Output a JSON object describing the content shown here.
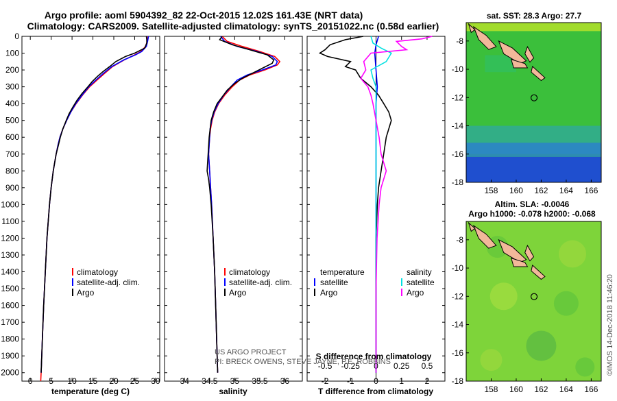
{
  "header": {
    "line1": "Argo profile: aoml 5904392_82 22-Oct-2015 12.02S 161.43E (NRT data)",
    "line2": "Climatology: CARS2009. Satellite-adjusted climatology: synTS_20151022.nc (0.58d earlier)"
  },
  "colors": {
    "climatology": "#ff0000",
    "satellite": "#0000ff",
    "argo": "#000000",
    "sal_satellite": "#00e0e0",
    "sal_argo": "#ff00ff"
  },
  "depth_axis": {
    "range": [
      0,
      2050
    ],
    "ticks": [
      0,
      100,
      200,
      300,
      400,
      500,
      600,
      700,
      800,
      900,
      1000,
      1100,
      1200,
      1300,
      1400,
      1500,
      1600,
      1700,
      1800,
      1900,
      2000
    ]
  },
  "chart_data": [
    {
      "type": "line",
      "name": "temperature",
      "xlabel": "temperature (deg C)",
      "xlim": [
        -2,
        31
      ],
      "xticks": [
        0,
        5,
        10,
        15,
        20,
        25,
        30
      ],
      "ylim": [
        0,
        2050
      ],
      "series": [
        {
          "name": "climatology",
          "color": "#ff0000",
          "depth": [
            0,
            30,
            60,
            90,
            110,
            140,
            180,
            220,
            260,
            300,
            350,
            400,
            450,
            500,
            550,
            600,
            650,
            700,
            800,
            900,
            1000,
            1200,
            1400,
            1600,
            1800,
            2000,
            2050
          ],
          "values": [
            28.2,
            28.0,
            27.6,
            26.5,
            25.0,
            22.5,
            19.7,
            17.8,
            16.0,
            14.2,
            12.5,
            11.0,
            9.7,
            8.7,
            7.8,
            7.1,
            6.6,
            6.2,
            5.5,
            5.0,
            4.6,
            4.0,
            3.6,
            3.2,
            2.9,
            2.6,
            2.5
          ]
        },
        {
          "name": "satellite-adj. clim.",
          "color": "#0000ff",
          "depth": [
            0,
            30,
            60,
            90,
            110,
            140,
            180,
            220,
            260,
            300,
            350,
            400,
            450,
            500,
            550,
            600,
            650,
            700,
            800,
            900,
            1000,
            1200,
            1400,
            1600,
            1800,
            2000
          ],
          "values": [
            28.3,
            28.1,
            27.8,
            26.7,
            25.2,
            22.4,
            19.5,
            17.5,
            15.7,
            14.0,
            12.4,
            10.9,
            9.7,
            8.7,
            7.8,
            7.1,
            6.6,
            6.2,
            5.5,
            5.0,
            4.6,
            4.0,
            3.6,
            3.2,
            2.9,
            2.6
          ]
        },
        {
          "name": "Argo",
          "color": "#000000",
          "depth": [
            0,
            20,
            40,
            70,
            100,
            120,
            150,
            180,
            210,
            240,
            270,
            300,
            340,
            380,
            420,
            460,
            500,
            550,
            600,
            650,
            700,
            800,
            900,
            1000,
            1200,
            1400,
            1600,
            1800,
            2000
          ],
          "values": [
            27.8,
            27.9,
            27.9,
            27.4,
            25.0,
            22.8,
            20.5,
            19.0,
            17.4,
            16.0,
            14.8,
            13.8,
            12.4,
            11.2,
            10.2,
            9.3,
            8.6,
            7.8,
            7.2,
            6.7,
            6.2,
            5.5,
            5.0,
            4.6,
            4.0,
            3.6,
            3.2,
            2.9,
            2.6
          ]
        }
      ],
      "legend": [
        "climatology",
        "satellite-adj. clim.",
        "Argo"
      ]
    },
    {
      "type": "line",
      "name": "salinity",
      "xlabel": "salinity",
      "xlim": [
        33.6,
        36.35
      ],
      "xticks": [
        34,
        34.5,
        35,
        35.5,
        36
      ],
      "xtick_labels": [
        "34",
        "34.5",
        "35",
        "35.5",
        "36"
      ],
      "ylim": [
        0,
        2050
      ],
      "series": [
        {
          "name": "climatology",
          "color": "#ff0000",
          "depth": [
            0,
            30,
            60,
            90,
            120,
            150,
            170,
            200,
            230,
            260,
            300,
            350,
            400,
            450,
            500,
            550,
            600,
            700,
            800,
            900,
            1000,
            1200,
            1400,
            1600,
            1800,
            2000
          ],
          "values": [
            34.75,
            34.85,
            35.15,
            35.5,
            35.8,
            35.9,
            35.85,
            35.6,
            35.3,
            35.1,
            34.95,
            34.8,
            34.68,
            34.6,
            34.55,
            34.52,
            34.5,
            34.48,
            34.5,
            34.52,
            34.54,
            34.57,
            34.6,
            34.62,
            34.64,
            34.66
          ]
        },
        {
          "name": "satellite-adj. clim.",
          "color": "#0000ff",
          "depth": [
            0,
            30,
            60,
            90,
            120,
            150,
            170,
            200,
            230,
            260,
            300,
            350,
            400,
            450,
            500,
            550,
            600,
            700,
            800,
            900,
            1000,
            1200,
            1400,
            1600,
            1800,
            2000
          ],
          "values": [
            34.72,
            34.8,
            35.05,
            35.45,
            35.75,
            35.85,
            35.82,
            35.55,
            35.25,
            35.05,
            34.92,
            34.78,
            34.67,
            34.59,
            34.54,
            34.51,
            34.5,
            34.48,
            34.5,
            34.52,
            34.54,
            34.57,
            34.6,
            34.62,
            34.64,
            34.66
          ]
        },
        {
          "name": "Argo",
          "color": "#000000",
          "depth": [
            0,
            20,
            50,
            80,
            110,
            140,
            160,
            190,
            220,
            250,
            280,
            320,
            360,
            400,
            450,
            500,
            600,
            700,
            800,
            850,
            900,
            1000,
            1200,
            1400,
            1600,
            1800,
            2000
          ],
          "values": [
            34.75,
            34.7,
            34.95,
            35.3,
            35.65,
            35.78,
            35.75,
            35.55,
            35.35,
            35.15,
            35.0,
            34.85,
            34.75,
            34.65,
            34.58,
            34.53,
            34.49,
            34.47,
            34.45,
            34.48,
            34.5,
            34.53,
            34.57,
            34.6,
            34.62,
            34.64,
            34.66
          ]
        }
      ],
      "legend": [
        "climatology",
        "satellite-adj. clim.",
        "Argo"
      ]
    },
    {
      "type": "line",
      "name": "difference from climatology",
      "xlabel": "T difference from climatology",
      "toplabel": "S difference from climatology",
      "xlim": [
        -2.7,
        2.7
      ],
      "xticks": [
        -2,
        -1,
        0,
        1,
        2
      ],
      "top_ticks": [
        -0.5,
        -0.25,
        0,
        0.25,
        0.5
      ],
      "top_tick_labels": [
        "-0.5",
        "-0.25",
        "0",
        "0.25",
        "0.5"
      ],
      "ylim": [
        0,
        2050
      ],
      "series": [
        {
          "name": "T satellite",
          "color": "#0000ff",
          "depth": [
            0,
            50,
            100,
            200,
            300,
            400,
            600,
            800,
            1000,
            1500,
            2000
          ],
          "values": [
            0.1,
            0.0,
            -0.05,
            0.0,
            0.05,
            0.0,
            0.0,
            0.0,
            0.0,
            0.0,
            0.0
          ]
        },
        {
          "name": "T Argo",
          "color": "#000000",
          "depth": [
            0,
            20,
            50,
            80,
            100,
            120,
            150,
            180,
            200,
            250,
            300,
            350,
            400,
            450,
            500,
            550,
            600,
            700,
            800,
            900,
            1000,
            1200,
            1500,
            2000
          ],
          "values": [
            -0.5,
            -1.2,
            -1.8,
            -2.0,
            -2.2,
            -1.9,
            -1.0,
            -1.2,
            -0.8,
            -0.6,
            -0.2,
            0.1,
            0.3,
            0.5,
            0.6,
            0.5,
            0.4,
            0.3,
            0.2,
            0.1,
            0.05,
            0.0,
            0.0,
            0.0
          ]
        },
        {
          "name": "S satellite",
          "color": "#00e0e0",
          "depth": [
            0,
            40,
            70,
            100,
            150,
            200,
            250,
            300,
            500,
            800,
            1200,
            2000
          ],
          "values": [
            -0.05,
            -0.03,
            0.05,
            0.15,
            0.1,
            -0.05,
            -0.03,
            0.0,
            0.0,
            0.0,
            0.0,
            0.0
          ]
        },
        {
          "name": "S Argo",
          "color": "#ff00ff",
          "depth": [
            0,
            15,
            30,
            60,
            80,
            100,
            150,
            200,
            250,
            300,
            350,
            400,
            500,
            600,
            700,
            800,
            900,
            1000,
            1200,
            1500,
            2000
          ],
          "values": [
            0.55,
            0.45,
            0.2,
            0.25,
            0.3,
            -0.05,
            -0.12,
            -0.1,
            -0.15,
            -0.08,
            -0.05,
            -0.03,
            0.0,
            0.03,
            0.05,
            0.1,
            0.05,
            0.03,
            0.01,
            0.0,
            0.0
          ]
        }
      ],
      "legend_left_title": "temperature",
      "legend_right_title": "salinity",
      "legend_left": [
        "satellite",
        "Argo"
      ],
      "legend_right": [
        "satellite",
        "Argo"
      ]
    },
    {
      "type": "heatmap",
      "name": "sst map",
      "title": "sat. SST: 28.3 Argo: 27.7",
      "xlim": [
        156,
        166.8
      ],
      "ylim": [
        -18,
        -6.7
      ],
      "xticks": [
        158,
        160,
        162,
        164,
        166
      ],
      "yticks": [
        -8,
        -10,
        -12,
        -14,
        -16,
        -18
      ],
      "profile_location": {
        "lon": 161.43,
        "lat": -12.02
      }
    },
    {
      "type": "heatmap",
      "name": "sla map",
      "title": "Altim. SLA: -0.0046",
      "subtitle": "Argo h1000: -0.078 h2000: -0.068",
      "xlim": [
        156,
        166.8
      ],
      "ylim": [
        -18,
        -6.7
      ],
      "xticks": [
        158,
        160,
        162,
        164,
        166
      ],
      "yticks": [
        -8,
        -10,
        -12,
        -14,
        -16,
        -18
      ],
      "profile_location": {
        "lon": 161.43,
        "lat": -12.02
      }
    }
  ],
  "credits": {
    "project_line1": "US ARGO PROJECT",
    "project_line2": "PI: BRECK OWENS, STEVE JAYNE, P.E. ROBBINS",
    "imos": "©IMOS 14-Dec-2018 11:46:20"
  }
}
